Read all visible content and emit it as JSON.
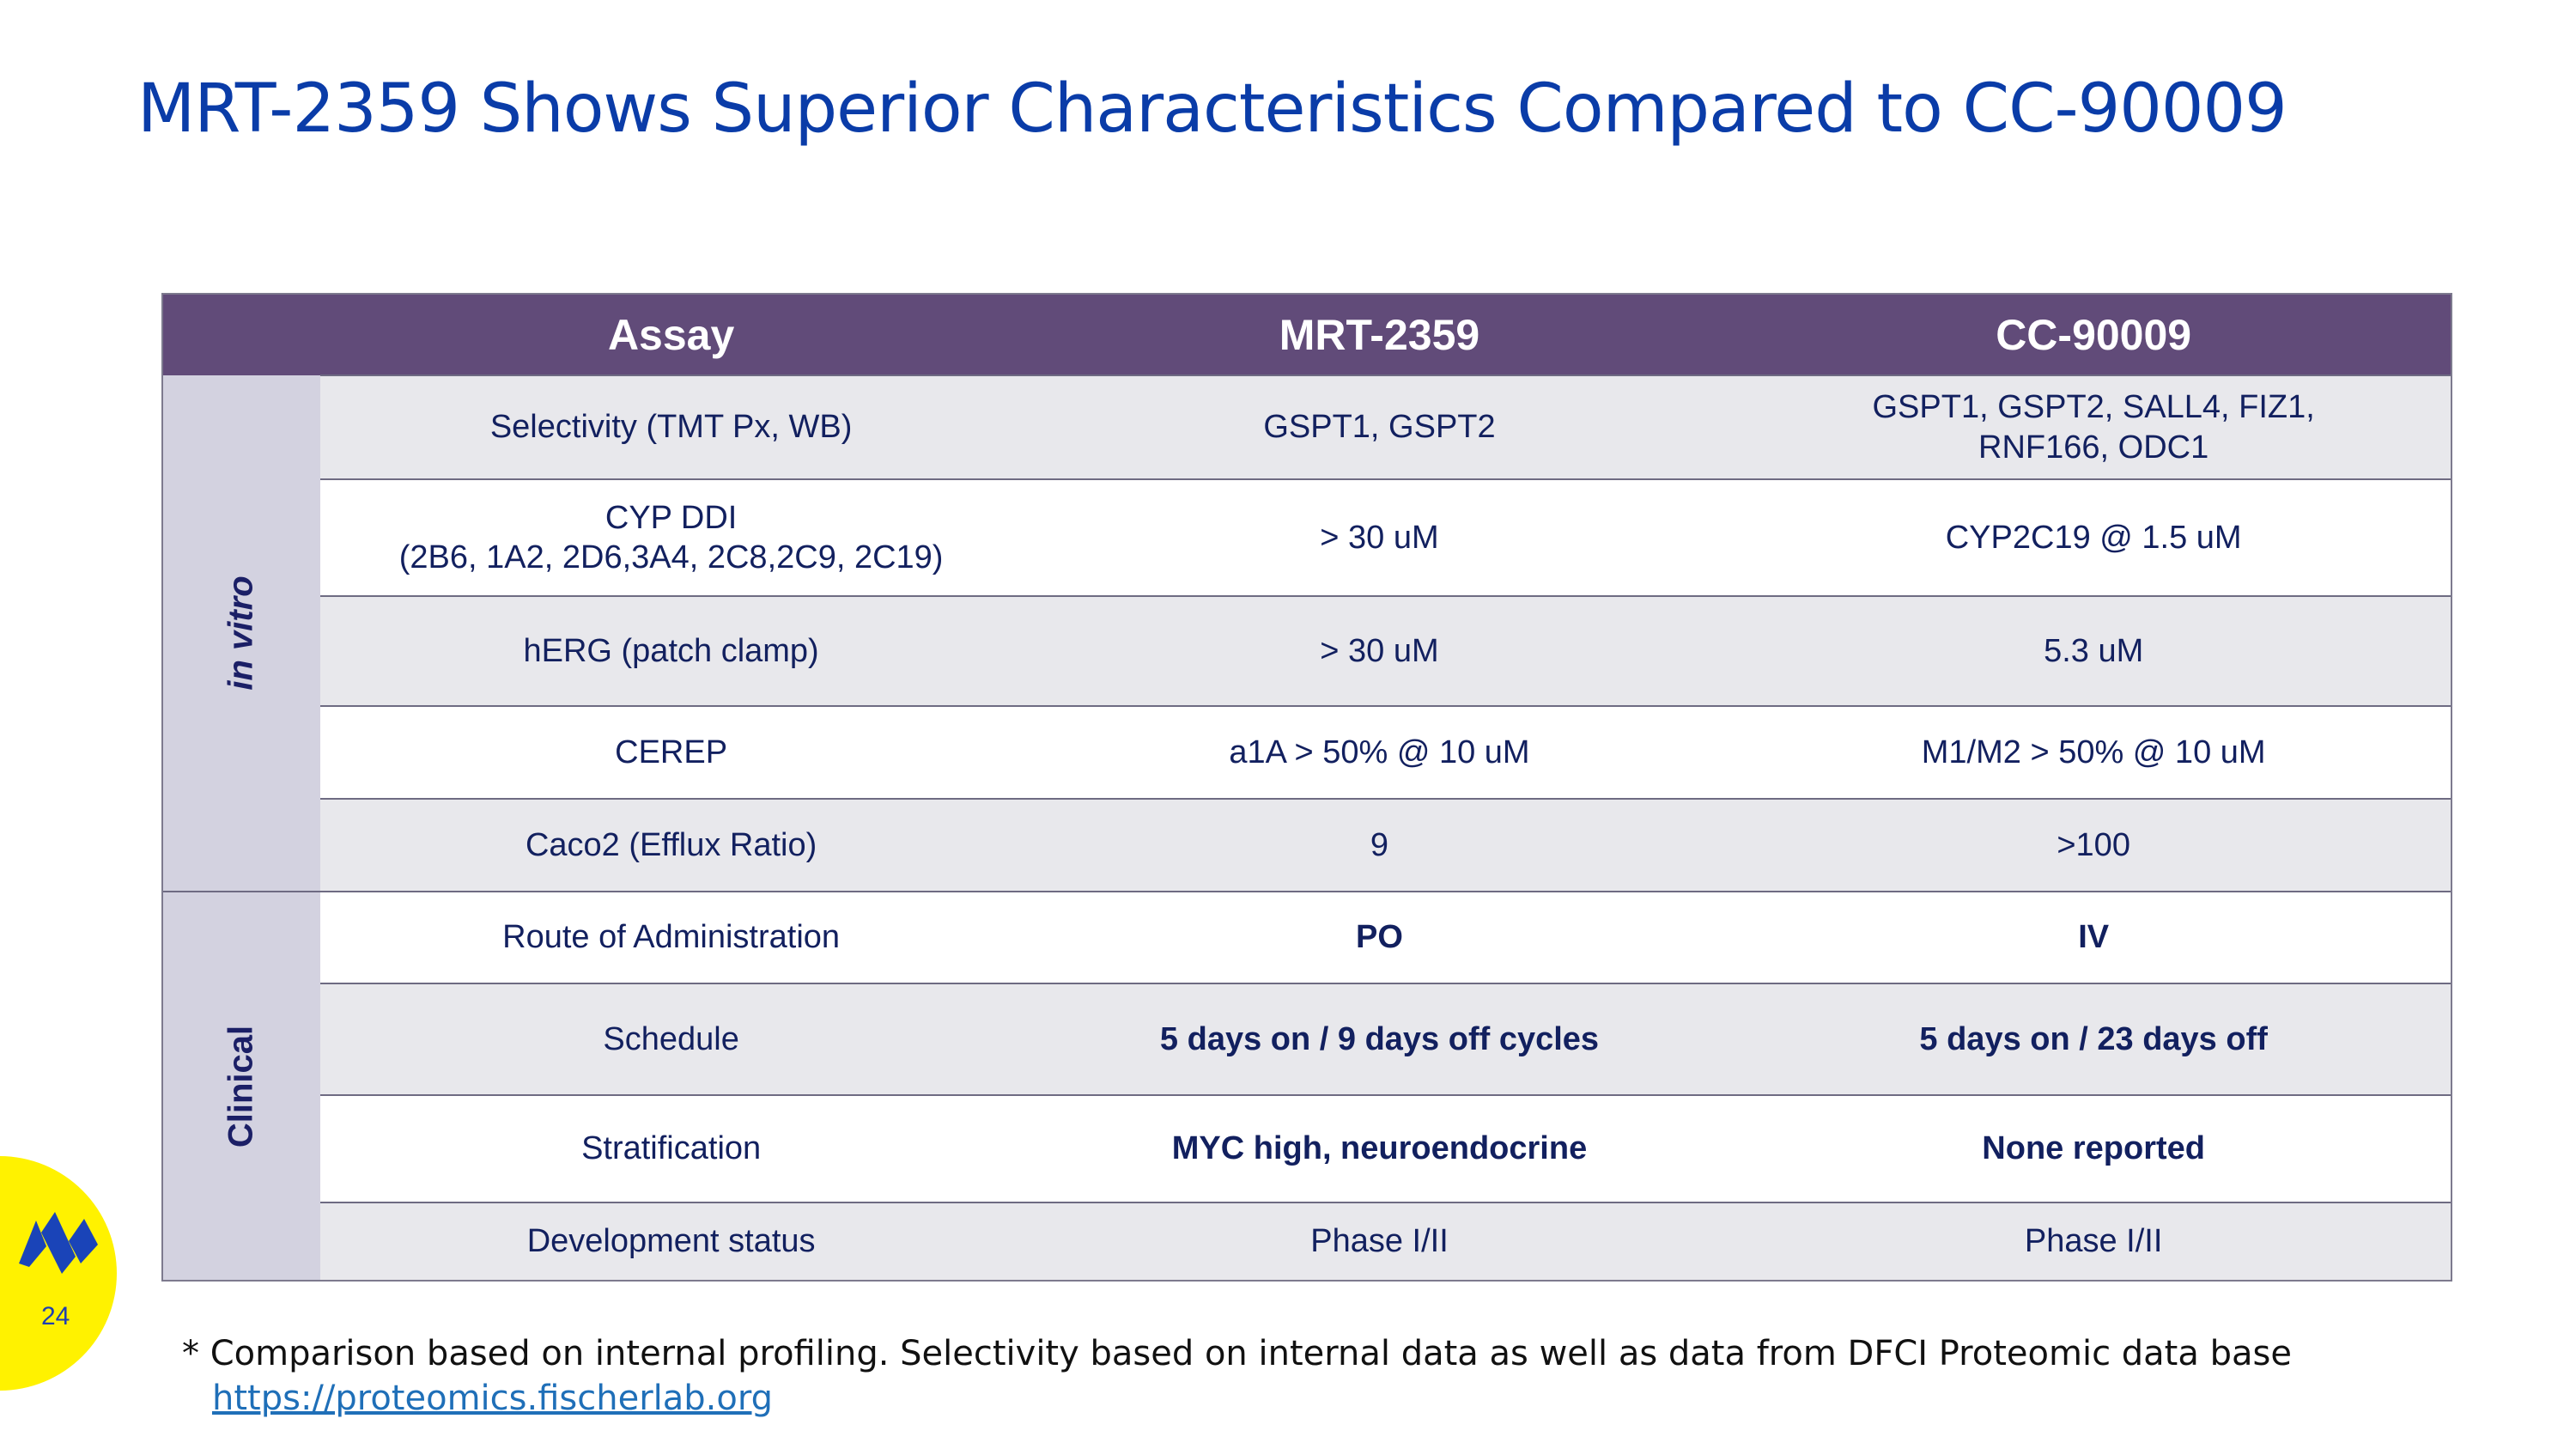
{
  "slide": {
    "title": "MRT-2359 Shows Superior Characteristics Compared to CC-90009",
    "page_number": "24"
  },
  "table": {
    "headers": {
      "assay": "Assay",
      "mrt": "MRT-2359",
      "cc": "CC-90009"
    },
    "groups": [
      {
        "label": "in vitro"
      },
      {
        "label": "Clinical"
      }
    ],
    "rows": [
      {
        "assay": "Selectivity (TMT Px, WB)",
        "mrt": "GSPT1, GSPT2",
        "cc_line1": "GSPT1, GSPT2, SALL4, FIZ1,",
        "cc_line2": "RNF166, ODC1"
      },
      {
        "assay_line1": "CYP DDI",
        "assay_line2": "(2B6, 1A2, 2D6,3A4, 2C8,2C9, 2C19)",
        "mrt": "> 30 uM",
        "cc": "CYP2C19 @ 1.5 uM"
      },
      {
        "assay": "hERG (patch clamp)",
        "mrt": "> 30 uM",
        "cc": "5.3 uM"
      },
      {
        "assay": "CEREP",
        "mrt": "a1A > 50% @ 10 uM",
        "cc": "M1/M2 > 50% @ 10 uM"
      },
      {
        "assay": "Caco2 (Efflux Ratio)",
        "mrt": "9",
        "cc": ">100"
      },
      {
        "assay": "Route of Administration",
        "mrt": "PO",
        "cc": "IV"
      },
      {
        "assay": "Schedule",
        "mrt": "5 days on / 9 days off cycles",
        "cc": "5 days on / 23 days off"
      },
      {
        "assay": "Stratification",
        "mrt": "MYC high, neuroendocrine",
        "cc": "None reported"
      },
      {
        "assay": "Development status",
        "mrt": "Phase I/II",
        "cc": "Phase I/II"
      }
    ]
  },
  "footnote": {
    "text": "* Comparison based on internal profiling. Selectivity based on internal data as well as data from DFCI Proteomic data base",
    "link": "https://proteomics.fischerlab.org"
  },
  "colors": {
    "title": "#0a3ca8",
    "header_bg": "#614b79",
    "side_bg": "#d3d2e0",
    "row_shade": "#e8e8ec",
    "accent_yellow": "#fff200"
  }
}
